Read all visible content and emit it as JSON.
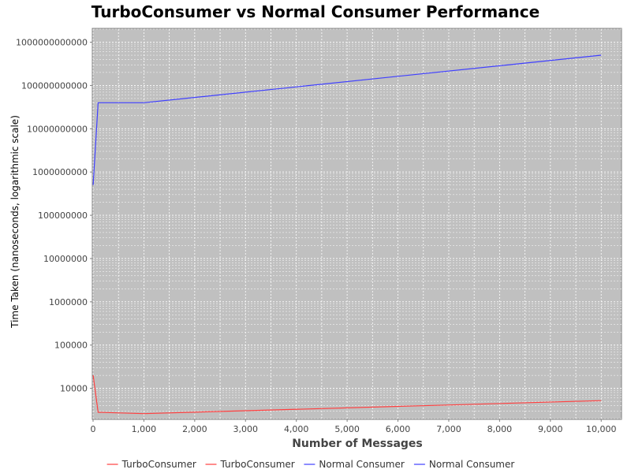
{
  "chart_data": {
    "type": "line",
    "title": "TurboConsumer vs Normal Consumer Performance",
    "xlabel": "Number of Messages",
    "ylabel": "Time Taken (nanoseconds, logarithmic scale)",
    "x_scale": "linear",
    "y_scale": "log",
    "xlim": [
      0,
      10400
    ],
    "ylim": [
      2000,
      2000000000000
    ],
    "grid": true,
    "legend_position": "bottom",
    "x_ticks": [
      "0",
      "1,000",
      "2,000",
      "3,000",
      "4,000",
      "5,000",
      "6,000",
      "7,000",
      "8,000",
      "9,000",
      "10,000"
    ],
    "x_tick_values": [
      0,
      1000,
      2000,
      3000,
      4000,
      5000,
      6000,
      7000,
      8000,
      9000,
      10000
    ],
    "y_ticks": [
      "10000",
      "100000",
      "1000000",
      "10000000",
      "100000000",
      "1000000000",
      "10000000000",
      "100000000000",
      "1000000000000"
    ],
    "y_tick_values": [
      10000,
      100000,
      1000000,
      10000000,
      100000000,
      1000000000,
      10000000000,
      100000000000,
      1000000000000
    ],
    "series": [
      {
        "name": "TurboConsumer",
        "color": "#ff4040",
        "x": [
          1,
          100,
          1000,
          10000
        ],
        "y": [
          20000,
          2800,
          2600,
          5200
        ]
      },
      {
        "name": "Normal Consumer",
        "color": "#4040ff",
        "x": [
          1,
          100,
          1000,
          10000
        ],
        "y": [
          500000000,
          40000000000,
          40000000000,
          500000000000
        ]
      }
    ],
    "legend_entries": [
      {
        "label": "TurboConsumer",
        "color": "#ff4040"
      },
      {
        "label": "TurboConsumer",
        "color": "#ff4040"
      },
      {
        "label": "Normal Consumer",
        "color": "#4040ff"
      },
      {
        "label": "Normal Consumer",
        "color": "#4040ff"
      }
    ],
    "plot_background": "#c0c0c0",
    "grid_color": "#ffffff"
  }
}
